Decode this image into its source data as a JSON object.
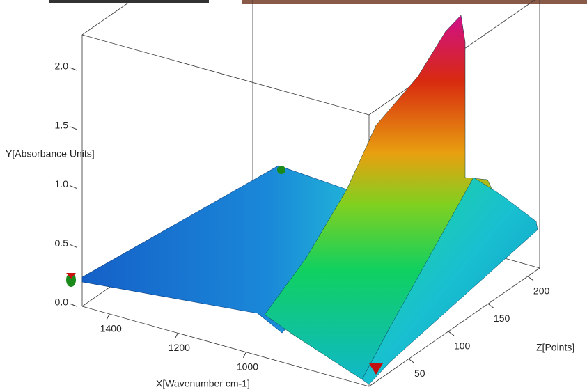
{
  "chart_data": {
    "type": "surface3d",
    "xlabel": "X[Wavenumber cm-1]",
    "ylabel": "Y[Absorbance Units]",
    "zlabel": "Z[Points]",
    "xlim": [
      1480,
      640
    ],
    "xticks": [
      1400,
      1200,
      1000
    ],
    "ylim": [
      0,
      2.3
    ],
    "yticks": [
      {
        "value": 0,
        "label": "0.0"
      },
      0.5,
      {
        "value": 1,
        "label": "1.0"
      },
      1.5,
      {
        "value": 2,
        "label": "2.0"
      }
    ],
    "zlim": [
      0,
      215
    ],
    "zticks": [
      50,
      100,
      150,
      200
    ]
  }
}
